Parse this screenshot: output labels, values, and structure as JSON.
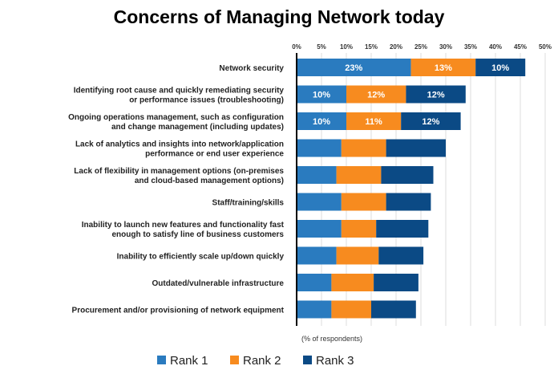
{
  "chart_data": {
    "type": "bar",
    "orientation": "horizontal",
    "stacked": true,
    "title": "Concerns of Managing Network today",
    "xlabel": "(% of respondents)",
    "ylabel": "",
    "xlim": [
      0,
      50
    ],
    "xticks": [
      "0%",
      "5%",
      "10%",
      "15%",
      "20%",
      "25%",
      "30%",
      "35%",
      "40%",
      "45%",
      "50%"
    ],
    "grid": true,
    "legend_position": "bottom",
    "categories": [
      [
        "Network security"
      ],
      [
        "Identifying root cause and quickly remediating security",
        "or performance issues (troubleshooting)"
      ],
      [
        "Ongoing operations management, such as configuration",
        "and change management (including updates)"
      ],
      [
        "Lack of analytics and insights into network/application",
        "performance or end user experience"
      ],
      [
        "Lack of flexibility in management options (on-premises",
        "and cloud-based management options)"
      ],
      [
        "Staff/training/skills"
      ],
      [
        "Inability to launch new features and functionality fast",
        "enough to satisfy line of business customers"
      ],
      [
        "Inability to efficiently scale up/down quickly"
      ],
      [
        "Outdated/vulnerable infrastructure"
      ],
      [
        "Procurement and/or provisioning of network equipment"
      ]
    ],
    "series": [
      {
        "name": "Rank 1",
        "color": "#2a7bbf",
        "values": [
          23,
          10,
          10,
          9,
          8,
          9,
          9,
          8,
          7,
          7
        ],
        "labels": [
          "23%",
          "10%",
          "10%",
          "",
          "",
          "",
          "",
          "",
          "",
          ""
        ]
      },
      {
        "name": "Rank 2",
        "color": "#f78b1f",
        "values": [
          13,
          12,
          11,
          9,
          9,
          9,
          7,
          8.5,
          8.5,
          8
        ],
        "labels": [
          "13%",
          "12%",
          "11%",
          "",
          "",
          "",
          "",
          "",
          "",
          ""
        ]
      },
      {
        "name": "Rank 3",
        "color": "#0b4a85",
        "values": [
          10,
          12,
          12,
          12,
          10.5,
          9,
          10.5,
          9,
          9,
          9
        ],
        "labels": [
          "10%",
          "12%",
          "12%",
          "",
          "",
          "",
          "",
          "",
          "",
          ""
        ]
      }
    ]
  }
}
